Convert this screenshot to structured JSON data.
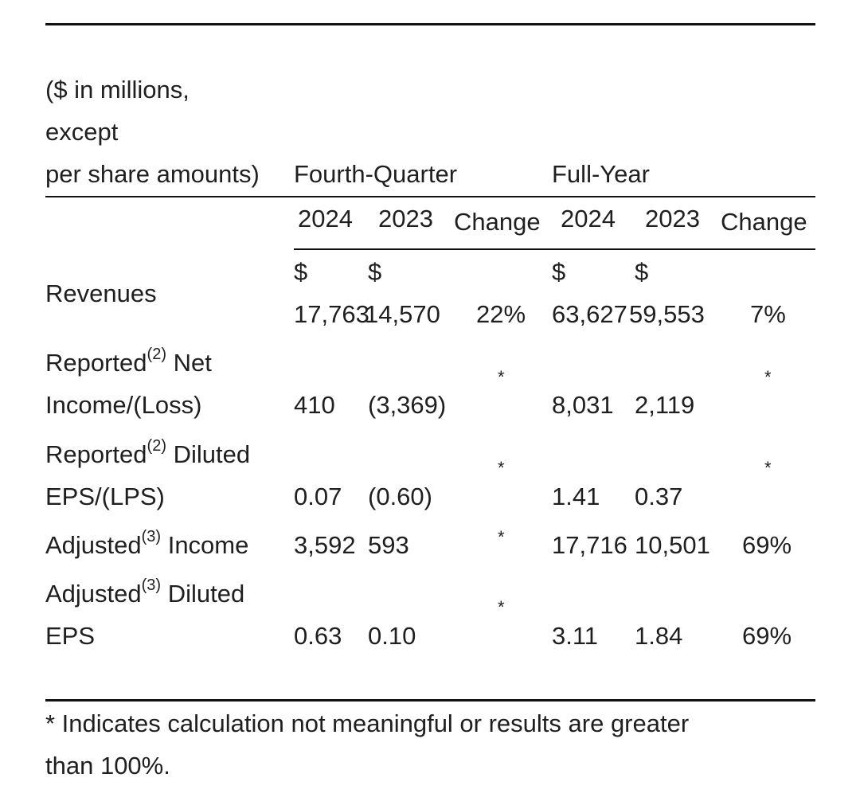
{
  "unit_note": [
    "($ in millions,",
    "except",
    "per share amounts)"
  ],
  "groups": {
    "q4": "Fourth-Quarter",
    "fy": "Full-Year"
  },
  "columns": {
    "y1": "2024",
    "y2": "2023",
    "change": "Change"
  },
  "currency": "$",
  "rows": [
    {
      "label_a": "Revenues",
      "q4_2024": "17,763",
      "q4_2023": "14,570",
      "q4_change": "22%",
      "fy_2024": "63,627",
      "fy_2023": "59,553",
      "fy_change": "7%"
    },
    {
      "label_a": "Reported",
      "sup": "(2)",
      "label_b": " Net",
      "label_c": "Income/(Loss)",
      "q4_2024": "410",
      "q4_2023": "(3,369)",
      "q4_change": "*",
      "fy_2024": "8,031",
      "fy_2023": "2,119",
      "fy_change": "*"
    },
    {
      "label_a": "Reported",
      "sup": "(2)",
      "label_b": " Diluted",
      "label_c": "EPS/(LPS)",
      "q4_2024": "0.07",
      "q4_2023": "(0.60)",
      "q4_change": "*",
      "fy_2024": "1.41",
      "fy_2023": "0.37",
      "fy_change": "*"
    },
    {
      "label_a": "Adjusted",
      "sup": "(3)",
      "label_b": " Income",
      "q4_2024": "3,592",
      "q4_2023": "593",
      "q4_change": "*",
      "fy_2024": "17,716",
      "fy_2023": "10,501",
      "fy_change": "69%"
    },
    {
      "label_a": "Adjusted",
      "sup": "(3)",
      "label_b": " Diluted",
      "label_c": "EPS",
      "q4_2024": "0.63",
      "q4_2023": "0.10",
      "q4_change": "*",
      "fy_2024": "3.11",
      "fy_2023": "1.84",
      "fy_change": "69%"
    }
  ],
  "footnote": [
    "* Indicates calculation not meaningful or results are greater",
    "than 100%."
  ]
}
